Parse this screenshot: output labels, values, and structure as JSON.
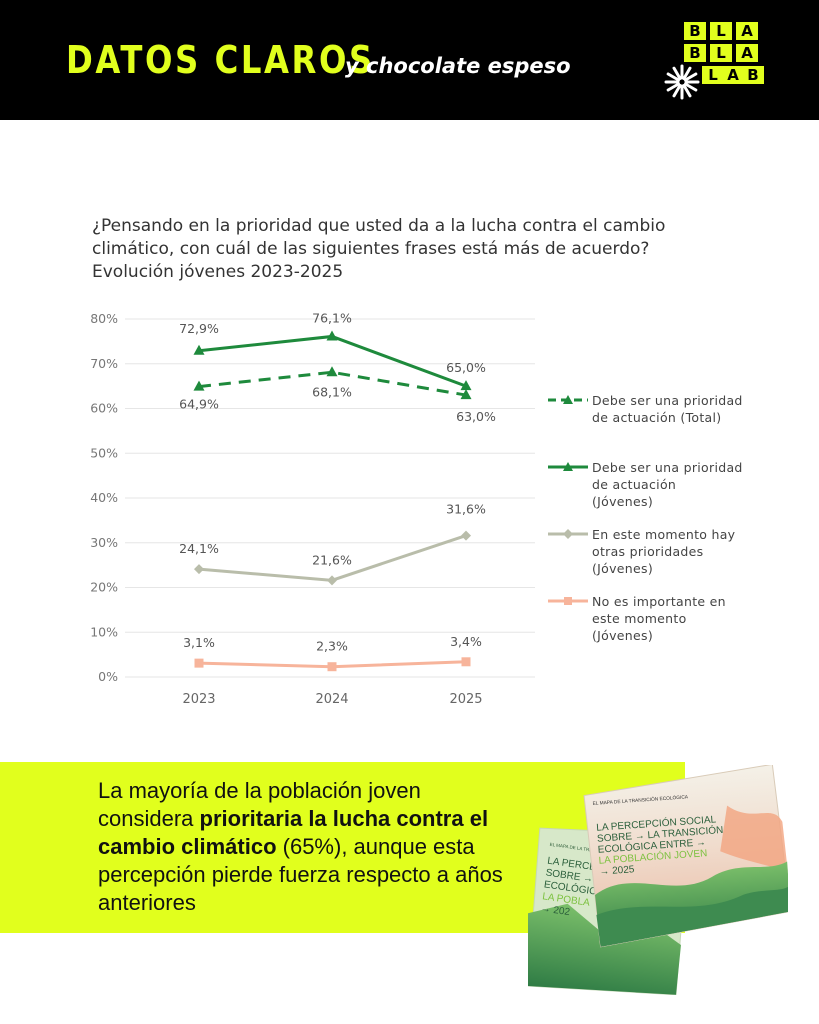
{
  "header": {
    "brand": "DATOS CLAROS",
    "tagline": "y chocolate espeso",
    "logo_letters": [
      "B",
      "L",
      "A",
      "B",
      "L",
      "A",
      "L",
      "A",
      "B"
    ],
    "bg_color": "#000000",
    "accent_color": "#e1ff1d"
  },
  "question": {
    "line1": "¿Pensando en la prioridad que usted da a la lucha contra el cambio",
    "line2": "climático, con cuál de las siguientes frases está más de acuerdo?",
    "line3": "Evolución jóvenes 2023-2025"
  },
  "chart_data": {
    "type": "line",
    "title": "¿Pensando en la prioridad que usted da a la lucha contra el cambio climático, con cuál de las siguientes frases está más de acuerdo? Evolución jóvenes 2023-2025",
    "categories": [
      "2023",
      "2024",
      "2025"
    ],
    "y_ticks": [
      "0%",
      "10%",
      "20%",
      "30%",
      "40%",
      "50%",
      "60%",
      "70%",
      "80%"
    ],
    "ylim": [
      0,
      80
    ],
    "grid": true,
    "legend_position": "right",
    "series": [
      {
        "name": "Debe ser una prioridad de actuación (Total)",
        "values": [
          64.9,
          68.1,
          63.0
        ],
        "labels": [
          "64,9%",
          "68,1%",
          "63,0%"
        ],
        "color": "#1e8a3c",
        "dashed": true,
        "marker": "triangle"
      },
      {
        "name": "Debe ser una prioridad de actuación (Jóvenes)",
        "values": [
          72.9,
          76.1,
          65.0
        ],
        "labels": [
          "72,9%",
          "76,1%",
          "65,0%"
        ],
        "color": "#1e8a3c",
        "dashed": false,
        "marker": "triangle"
      },
      {
        "name": "En este momento hay otras prioridades (Jóvenes)",
        "values": [
          24.1,
          21.6,
          31.6
        ],
        "labels": [
          "24,1%",
          "21,6%",
          "31,6%"
        ],
        "color": "#b9bdaa",
        "dashed": false,
        "marker": "diamond"
      },
      {
        "name": "No es importante en este momento (Jóvenes)",
        "values": [
          3.1,
          2.3,
          3.4
        ],
        "labels": [
          "3,1%",
          "2,3%",
          "3,4%"
        ],
        "color": "#f7b49b",
        "dashed": false,
        "marker": "square"
      }
    ]
  },
  "legend": [
    {
      "lines": [
        "Debe ser una prioridad",
        "de actuación (Total)"
      ]
    },
    {
      "lines": [
        "Debe ser una prioridad",
        "de actuación",
        "(Jóvenes)"
      ]
    },
    {
      "lines": [
        "En este momento hay",
        "otras prioridades",
        "(Jóvenes)"
      ]
    },
    {
      "lines": [
        "No es importante en",
        "este momento",
        "(Jóvenes)"
      ]
    }
  ],
  "banner": {
    "part1": "La mayoría de la población joven considera ",
    "bold": "prioritaria la lucha contra el cambio climático",
    "part2": " (65%), aunque esta percepción pierde fuerza respecto a años anteriores",
    "bg_color": "#e1ff1d"
  },
  "book": {
    "kicker": "EL MAPA DE LA TRANSICIÓN ECOLÓGICA",
    "title_lines": [
      "LA PERCEPCIÓN SOCIAL",
      "SOBRE → LA TRANSICIÓN",
      "ECOLÓGICA ENTRE →"
    ],
    "highlight": "LA POBLACIÓN JOVEN",
    "year": "→ 2025",
    "back_title_lines": [
      "LA PERCEPCI",
      "SOBRE → LA",
      "ECOLÓGICA",
      "LA POBLA",
      "→ 202"
    ]
  }
}
